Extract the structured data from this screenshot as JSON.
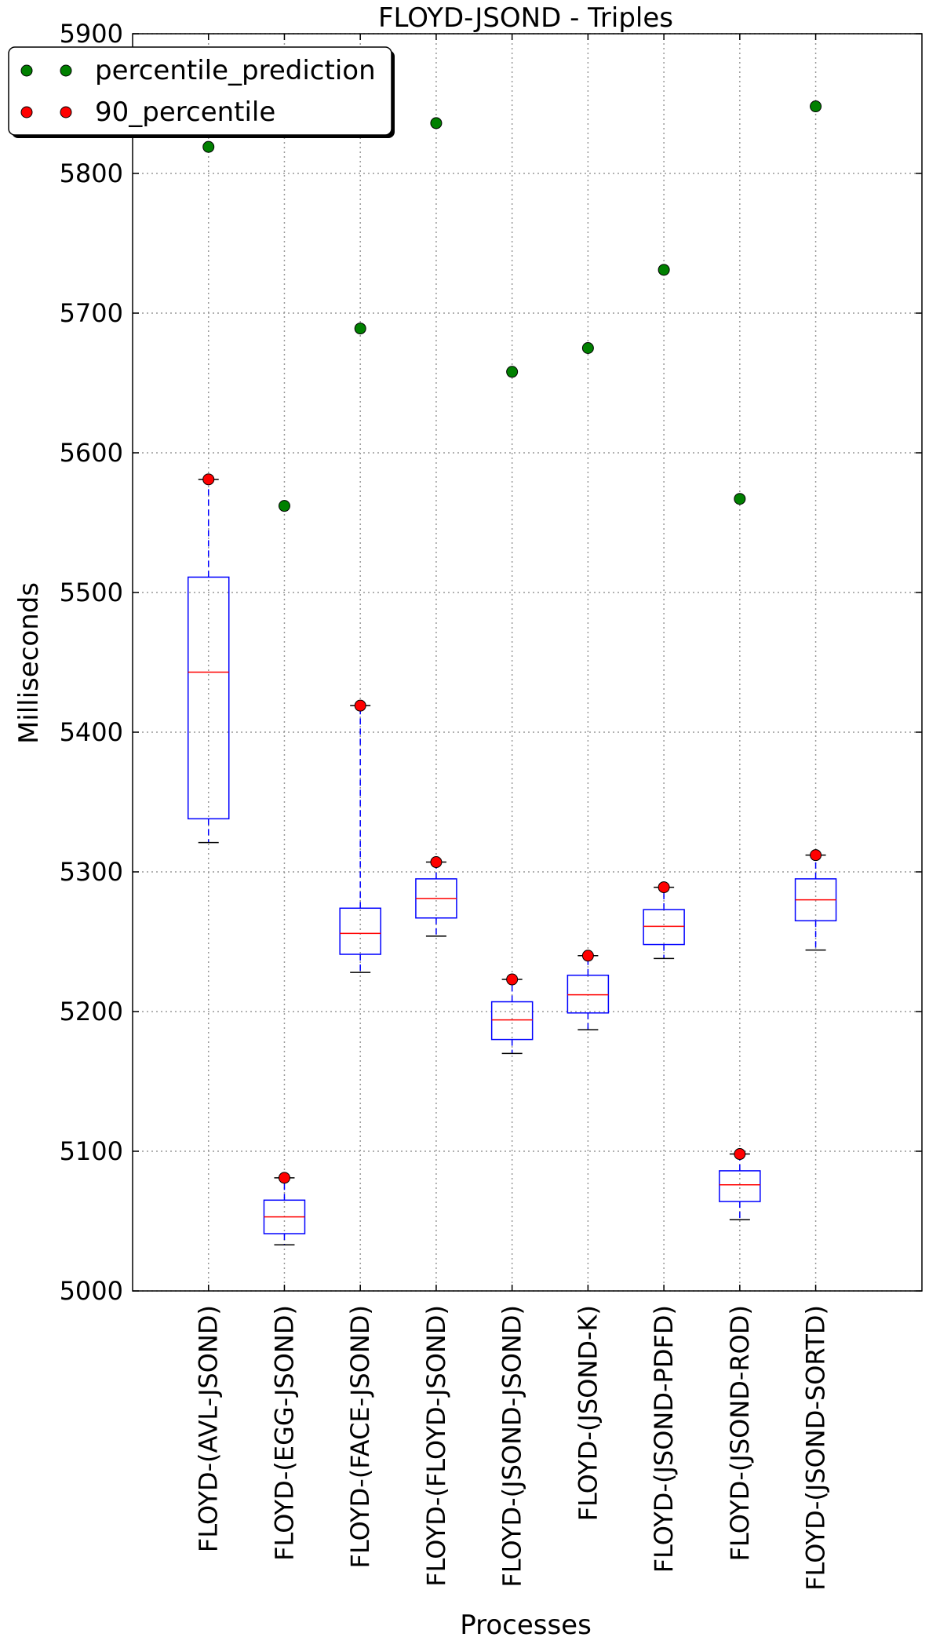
{
  "chart_data": {
    "type": "box",
    "title": "FLOYD-JSOND - Triples",
    "xlabel": "Processes",
    "ylabel": "Milliseconds",
    "ylim": [
      5000,
      5900
    ],
    "yticks": [
      5000,
      5100,
      5200,
      5300,
      5400,
      5500,
      5600,
      5700,
      5800,
      5900
    ],
    "grid": true,
    "legend_position": "top-left",
    "categories": [
      "FLOYD-(AVL-JSOND)",
      "FLOYD-(EGG-JSOND)",
      "FLOYD-(FACE-JSOND)",
      "FLOYD-(FLOYD-JSOND)",
      "FLOYD-(JSOND-JSOND)",
      "FLOYD-(JSOND-K)",
      "FLOYD-(JSOND-PDFD)",
      "FLOYD-(JSOND-ROD)",
      "FLOYD-(JSOND-SORTD)"
    ],
    "boxes": [
      {
        "whisker_low": 5321,
        "q1": 5338,
        "median": 5443,
        "q3": 5511,
        "whisker_high": 5581
      },
      {
        "whisker_low": 5033,
        "q1": 5041,
        "median": 5053,
        "q3": 5065,
        "whisker_high": 5081
      },
      {
        "whisker_low": 5228,
        "q1": 5241,
        "median": 5256,
        "q3": 5274,
        "whisker_high": 5419
      },
      {
        "whisker_low": 5254,
        "q1": 5267,
        "median": 5281,
        "q3": 5295,
        "whisker_high": 5307
      },
      {
        "whisker_low": 5170,
        "q1": 5180,
        "median": 5194,
        "q3": 5207,
        "whisker_high": 5223
      },
      {
        "whisker_low": 5187,
        "q1": 5199,
        "median": 5212,
        "q3": 5226,
        "whisker_high": 5240
      },
      {
        "whisker_low": 5238,
        "q1": 5248,
        "median": 5261,
        "q3": 5273,
        "whisker_high": 5289
      },
      {
        "whisker_low": 5051,
        "q1": 5064,
        "median": 5076,
        "q3": 5086,
        "whisker_high": 5098
      },
      {
        "whisker_low": 5244,
        "q1": 5265,
        "median": 5280,
        "q3": 5295,
        "whisker_high": 5312
      }
    ],
    "series": [
      {
        "name": "percentile_prediction",
        "color": "#008000",
        "values": [
          5819,
          5562,
          5689,
          5836,
          5658,
          5675,
          5731,
          5567,
          5848
        ]
      },
      {
        "name": "90_percentile",
        "color": "#ff0000",
        "values": [
          5581,
          5081,
          5419,
          5307,
          5223,
          5240,
          5289,
          5098,
          5312
        ]
      }
    ],
    "colors": {
      "box": "#0000ff",
      "median": "#ff0000",
      "whisker": "#0000ff",
      "cap": "#000000",
      "grid": "#999999"
    }
  }
}
